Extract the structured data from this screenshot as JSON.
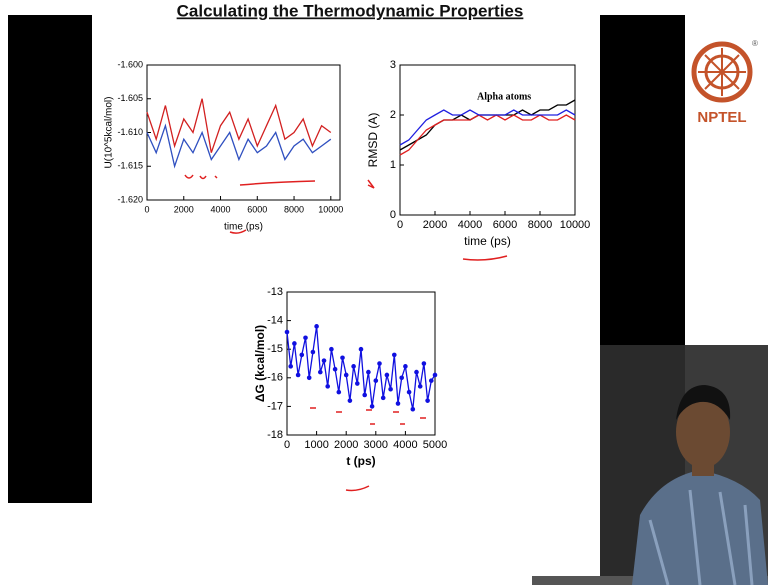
{
  "slide": {
    "title": "Calculating the Thermodynamic Properties"
  },
  "logo": {
    "text": "NPTEL"
  },
  "chart_data": [
    {
      "type": "line",
      "ylabel": "U(10^5kcal/mol)",
      "xlabel": "time (ps)",
      "x": [
        0,
        500,
        1000,
        1500,
        2000,
        2500,
        3000,
        3500,
        4000,
        4500,
        5000,
        5500,
        6000,
        6500,
        7000,
        7500,
        8000,
        8500,
        9000,
        9500,
        10000
      ],
      "series": [
        {
          "color": "#d22020",
          "values": [
            -1.607,
            -1.611,
            -1.606,
            -1.612,
            -1.608,
            -1.61,
            -1.605,
            -1.613,
            -1.609,
            -1.607,
            -1.611,
            -1.608,
            -1.612,
            -1.609,
            -1.606,
            -1.611,
            -1.61,
            -1.608,
            -1.612,
            -1.609,
            -1.61
          ]
        },
        {
          "color": "#3050c0",
          "values": [
            -1.61,
            -1.613,
            -1.609,
            -1.615,
            -1.611,
            -1.613,
            -1.61,
            -1.614,
            -1.612,
            -1.61,
            -1.614,
            -1.611,
            -1.613,
            -1.612,
            -1.61,
            -1.614,
            -1.612,
            -1.611,
            -1.613,
            -1.612,
            -1.611
          ]
        }
      ],
      "xlim": [
        0,
        10500
      ],
      "xticks": [
        0,
        2000,
        4000,
        6000,
        8000,
        10000
      ],
      "ylim": [
        -1.62,
        -1.6
      ],
      "yticks": [
        {
          "value": -1.62,
          "label": "-1.620"
        },
        {
          "value": -1.615,
          "label": "-1.615"
        },
        {
          "value": -1.61,
          "label": "-1.610"
        },
        {
          "value": -1.605,
          "label": "-1.605"
        },
        {
          "value": -1.6,
          "label": "-1.600"
        }
      ]
    },
    {
      "type": "line",
      "ylabel": "RMSD (A)",
      "xlabel": "time (ps)",
      "annotation": "Alpha atoms",
      "x": [
        0,
        500,
        1000,
        1500,
        2000,
        2500,
        3000,
        3500,
        4000,
        4500,
        5000,
        5500,
        6000,
        6500,
        7000,
        7500,
        8000,
        8500,
        9000,
        9500,
        10000
      ],
      "series": [
        {
          "color": "#000000",
          "values": [
            1.3,
            1.4,
            1.5,
            1.6,
            1.8,
            1.9,
            1.9,
            2.0,
            1.9,
            2.0,
            2.0,
            2.0,
            2.0,
            2.0,
            2.1,
            2.0,
            2.1,
            2.1,
            2.2,
            2.2,
            2.3
          ]
        },
        {
          "color": "#e02020",
          "values": [
            1.2,
            1.3,
            1.5,
            1.7,
            1.8,
            1.9,
            1.9,
            1.9,
            1.9,
            2.0,
            1.9,
            2.0,
            1.9,
            2.0,
            1.9,
            1.9,
            2.0,
            1.9,
            1.9,
            2.0,
            1.9
          ]
        },
        {
          "color": "#2020e0",
          "values": [
            1.4,
            1.5,
            1.7,
            1.9,
            2.0,
            2.1,
            2.0,
            2.0,
            2.1,
            2.0,
            2.0,
            2.0,
            2.0,
            2.1,
            2.0,
            2.0,
            2.0,
            2.0,
            2.0,
            2.1,
            2.0
          ]
        }
      ],
      "xlim": [
        0,
        10000
      ],
      "xticks": [
        0,
        2000,
        4000,
        6000,
        8000,
        10000
      ],
      "ylim": [
        0,
        3
      ],
      "yticks": [
        0,
        1,
        2,
        3
      ]
    },
    {
      "type": "line",
      "markers": true,
      "ylabel": "ΔG (kcal/mol)",
      "xlabel": "t (ps)",
      "x": [
        0,
        125,
        250,
        375,
        500,
        625,
        750,
        875,
        1000,
        1125,
        1250,
        1375,
        1500,
        1625,
        1750,
        1875,
        2000,
        2125,
        2250,
        2375,
        2500,
        2625,
        2750,
        2875,
        3000,
        3125,
        3250,
        3375,
        3500,
        3625,
        3750,
        3875,
        4000,
        4125,
        4250,
        4375,
        4500,
        4625,
        4750,
        4875,
        5000
      ],
      "series": [
        {
          "color": "#1010e0",
          "values": [
            -14.4,
            -15.6,
            -14.8,
            -15.9,
            -15.2,
            -14.6,
            -16.0,
            -15.1,
            -14.2,
            -15.8,
            -15.4,
            -16.3,
            -15.0,
            -15.7,
            -16.5,
            -15.3,
            -15.9,
            -16.8,
            -15.6,
            -16.2,
            -15.0,
            -16.6,
            -15.8,
            -17.0,
            -16.1,
            -15.5,
            -16.7,
            -15.9,
            -16.4,
            -15.2,
            -16.9,
            -16.0,
            -15.6,
            -16.5,
            -17.1,
            -15.8,
            -16.3,
            -15.5,
            -16.8,
            -16.1,
            -15.9
          ]
        }
      ],
      "xlim": [
        0,
        5000
      ],
      "xticks": [
        0,
        1000,
        2000,
        3000,
        4000,
        5000
      ],
      "ylim": [
        -18,
        -13
      ],
      "yticks": [
        -18,
        -17,
        -16,
        -15,
        -14,
        -13
      ]
    }
  ]
}
